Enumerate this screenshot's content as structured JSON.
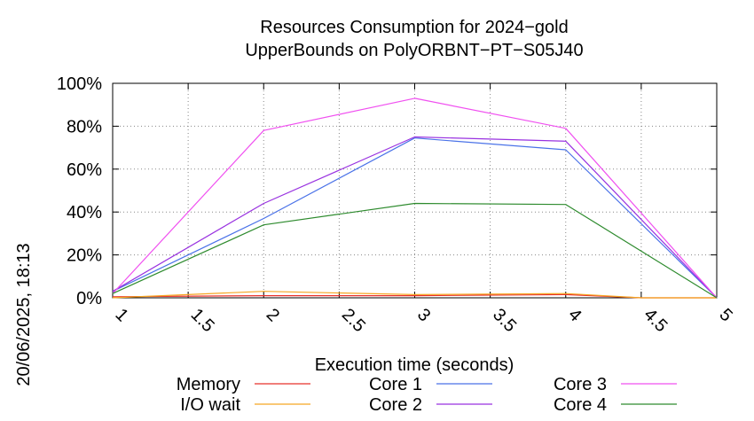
{
  "chart_data": {
    "type": "line",
    "title": [
      "Resources Consumption for 2024−gold",
      "UpperBounds on PolyORBNT−PT−S05J40"
    ],
    "xlabel": "Execution time (seconds)",
    "ylabel": "",
    "side_label": "20/06/2025, 18:13",
    "xlim": [
      1,
      5
    ],
    "ylim": [
      0,
      100
    ],
    "x_ticks": [
      1,
      1.5,
      2,
      2.5,
      3,
      3.5,
      4,
      4.5,
      5
    ],
    "y_ticks": [
      0,
      20,
      40,
      60,
      80,
      100
    ],
    "y_tick_labels": [
      "0%",
      "20%",
      "40%",
      "60%",
      "80%",
      "100%"
    ],
    "grid": true,
    "legend_position": "bottom",
    "series": [
      {
        "name": "Memory",
        "color": "#e8302a",
        "x": [
          1,
          2,
          3,
          4,
          4.5,
          5
        ],
        "values": [
          0.5,
          1,
          1,
          1.5,
          0,
          0
        ]
      },
      {
        "name": "I/O wait",
        "color": "#f5a623",
        "x": [
          1,
          2,
          3,
          4,
          4.5,
          5
        ],
        "values": [
          0,
          3,
          1.5,
          2,
          0,
          0
        ]
      },
      {
        "name": "Core 1",
        "color": "#4a72e8",
        "x": [
          1,
          2,
          3,
          4,
          5
        ],
        "values": [
          3,
          37,
          74.5,
          69,
          0
        ]
      },
      {
        "name": "Core 2",
        "color": "#9932e0",
        "x": [
          1,
          2,
          3,
          4,
          5
        ],
        "values": [
          3,
          44,
          75,
          73,
          0
        ]
      },
      {
        "name": "Core 3",
        "color": "#f050f0",
        "x": [
          1,
          2,
          3,
          4,
          5
        ],
        "values": [
          2,
          78,
          93,
          79,
          0
        ]
      },
      {
        "name": "Core 4",
        "color": "#2e8b2e",
        "x": [
          1,
          2,
          3,
          4,
          5
        ],
        "values": [
          2,
          34,
          44,
          43.5,
          0
        ]
      }
    ]
  }
}
